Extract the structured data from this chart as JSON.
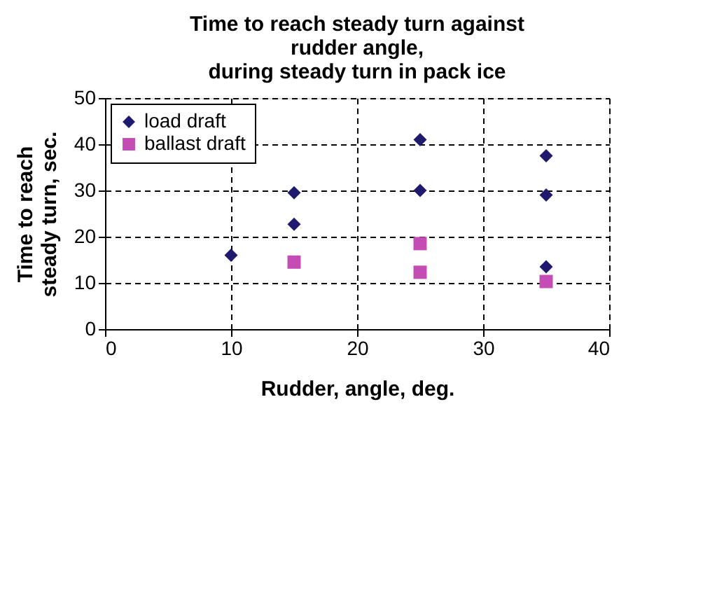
{
  "chart_data": {
    "type": "scatter",
    "title": [
      "Time to reach steady turn against",
      "rudder angle,",
      "during steady turn in pack ice"
    ],
    "xlabel": "Rudder, angle, deg.",
    "ylabel": [
      "Time to reach",
      "steady turn, sec."
    ],
    "series": [
      {
        "name": "load draft",
        "color": "#1f1a6e",
        "marker": "diamond",
        "x": [
          10,
          15,
          15,
          25,
          25,
          35,
          35,
          35
        ],
        "values": [
          16,
          29.5,
          22.7,
          41,
          30,
          37.5,
          29,
          13.5
        ]
      },
      {
        "name": "ballast draft",
        "color": "#c44cb4",
        "marker": "square",
        "x": [
          15,
          25,
          25,
          35
        ],
        "values": [
          14.5,
          18.5,
          12.3,
          10.3
        ]
      }
    ],
    "xlim": [
      0,
      40
    ],
    "xticks": [
      0,
      10,
      20,
      30,
      40
    ],
    "ylim": [
      0,
      50
    ],
    "yticks": [
      0,
      10,
      20,
      30,
      40,
      50
    ],
    "grid": true,
    "legend": "top left"
  }
}
